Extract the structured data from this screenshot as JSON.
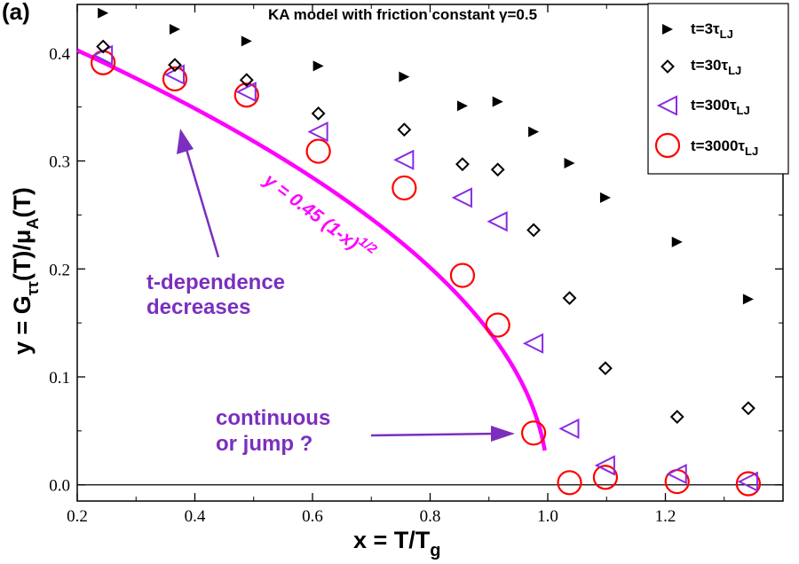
{
  "chart_data": {
    "type": "scatter",
    "panel_label": "(a)",
    "title": "KA model with friction constant γ=0.5",
    "xlabel": {
      "main": "x = T/T",
      "sub": "g"
    },
    "ylabel": {
      "p1": "y = G",
      "sub1": "ττ",
      "p2": "(T)/μ",
      "sub2": "A",
      "p3": "(T)"
    },
    "xlim": [
      0.2,
      1.4
    ],
    "ylim": [
      -0.015,
      0.445
    ],
    "xticks": [
      0.2,
      0.4,
      0.6,
      0.8,
      1.0,
      1.2
    ],
    "xtick_labels": [
      "0.2",
      "0.4",
      "0.6",
      "0.8",
      "1.0",
      "1.2"
    ],
    "yticks": [
      0.0,
      0.1,
      0.2,
      0.3,
      0.4
    ],
    "ytick_labels": [
      "0.0",
      "0.1",
      "0.2",
      "0.3",
      "0.4"
    ],
    "legend_position": "top-right",
    "series": [
      {
        "name": "t=3τLJ",
        "label_main": "t=3τ",
        "label_sub": "LJ",
        "marker": "triangle-right",
        "color": "#000000",
        "points": [
          [
            0.244,
            0.437
          ],
          [
            0.366,
            0.422
          ],
          [
            0.488,
            0.411
          ],
          [
            0.61,
            0.388
          ],
          [
            0.756,
            0.378
          ],
          [
            0.855,
            0.351
          ],
          [
            0.915,
            0.355
          ],
          [
            0.976,
            0.327
          ],
          [
            1.037,
            0.298
          ],
          [
            1.098,
            0.266
          ],
          [
            1.22,
            0.225
          ],
          [
            1.341,
            0.172
          ]
        ]
      },
      {
        "name": "t=30τLJ",
        "label_main": "t=30τ",
        "label_sub": "LJ",
        "marker": "diamond",
        "color": "#000000",
        "points": [
          [
            0.244,
            0.406
          ],
          [
            0.366,
            0.389
          ],
          [
            0.488,
            0.375
          ],
          [
            0.61,
            0.344
          ],
          [
            0.756,
            0.329
          ],
          [
            0.855,
            0.297
          ],
          [
            0.915,
            0.292
          ],
          [
            0.976,
            0.236
          ],
          [
            1.037,
            0.173
          ],
          [
            1.098,
            0.108
          ],
          [
            1.22,
            0.063
          ],
          [
            1.341,
            0.071
          ]
        ]
      },
      {
        "name": "t=300τLJ",
        "label_main": "t=300τ",
        "label_sub": "LJ",
        "marker": "triangle-left",
        "color": "#8a2be2",
        "points": [
          [
            0.244,
            0.398
          ],
          [
            0.366,
            0.38
          ],
          [
            0.488,
            0.364
          ],
          [
            0.61,
            0.327
          ],
          [
            0.756,
            0.301
          ],
          [
            0.855,
            0.266
          ],
          [
            0.915,
            0.244
          ],
          [
            0.976,
            0.131
          ],
          [
            1.037,
            0.052
          ],
          [
            1.098,
            0.018
          ],
          [
            1.22,
            0.01
          ],
          [
            1.341,
            0.003
          ]
        ]
      },
      {
        "name": "t=3000τLJ",
        "label_main": "t=3000τ",
        "label_sub": "LJ",
        "marker": "circle",
        "color": "#ff0000",
        "points": [
          [
            0.244,
            0.391
          ],
          [
            0.366,
            0.376
          ],
          [
            0.488,
            0.361
          ],
          [
            0.61,
            0.309
          ],
          [
            0.756,
            0.275
          ],
          [
            0.855,
            0.194
          ],
          [
            0.915,
            0.148
          ],
          [
            0.976,
            0.048
          ],
          [
            1.037,
            0.002
          ],
          [
            1.098,
            0.007
          ],
          [
            1.22,
            0.003
          ],
          [
            1.341,
            0.001
          ]
        ]
      }
    ],
    "fit_curve": {
      "label": "y = 0.45 (1-x)",
      "exponent": "1/2",
      "amplitude": 0.45,
      "power": 0.5,
      "x_range": [
        0.2,
        0.995
      ],
      "color": "#ff00ff"
    },
    "annotations": [
      {
        "lines": [
          "t-dependence",
          "decreases"
        ],
        "color": "#7b2fbe"
      },
      {
        "lines": [
          "continuous",
          "or jump ?"
        ],
        "color": "#7b2fbe"
      }
    ]
  }
}
